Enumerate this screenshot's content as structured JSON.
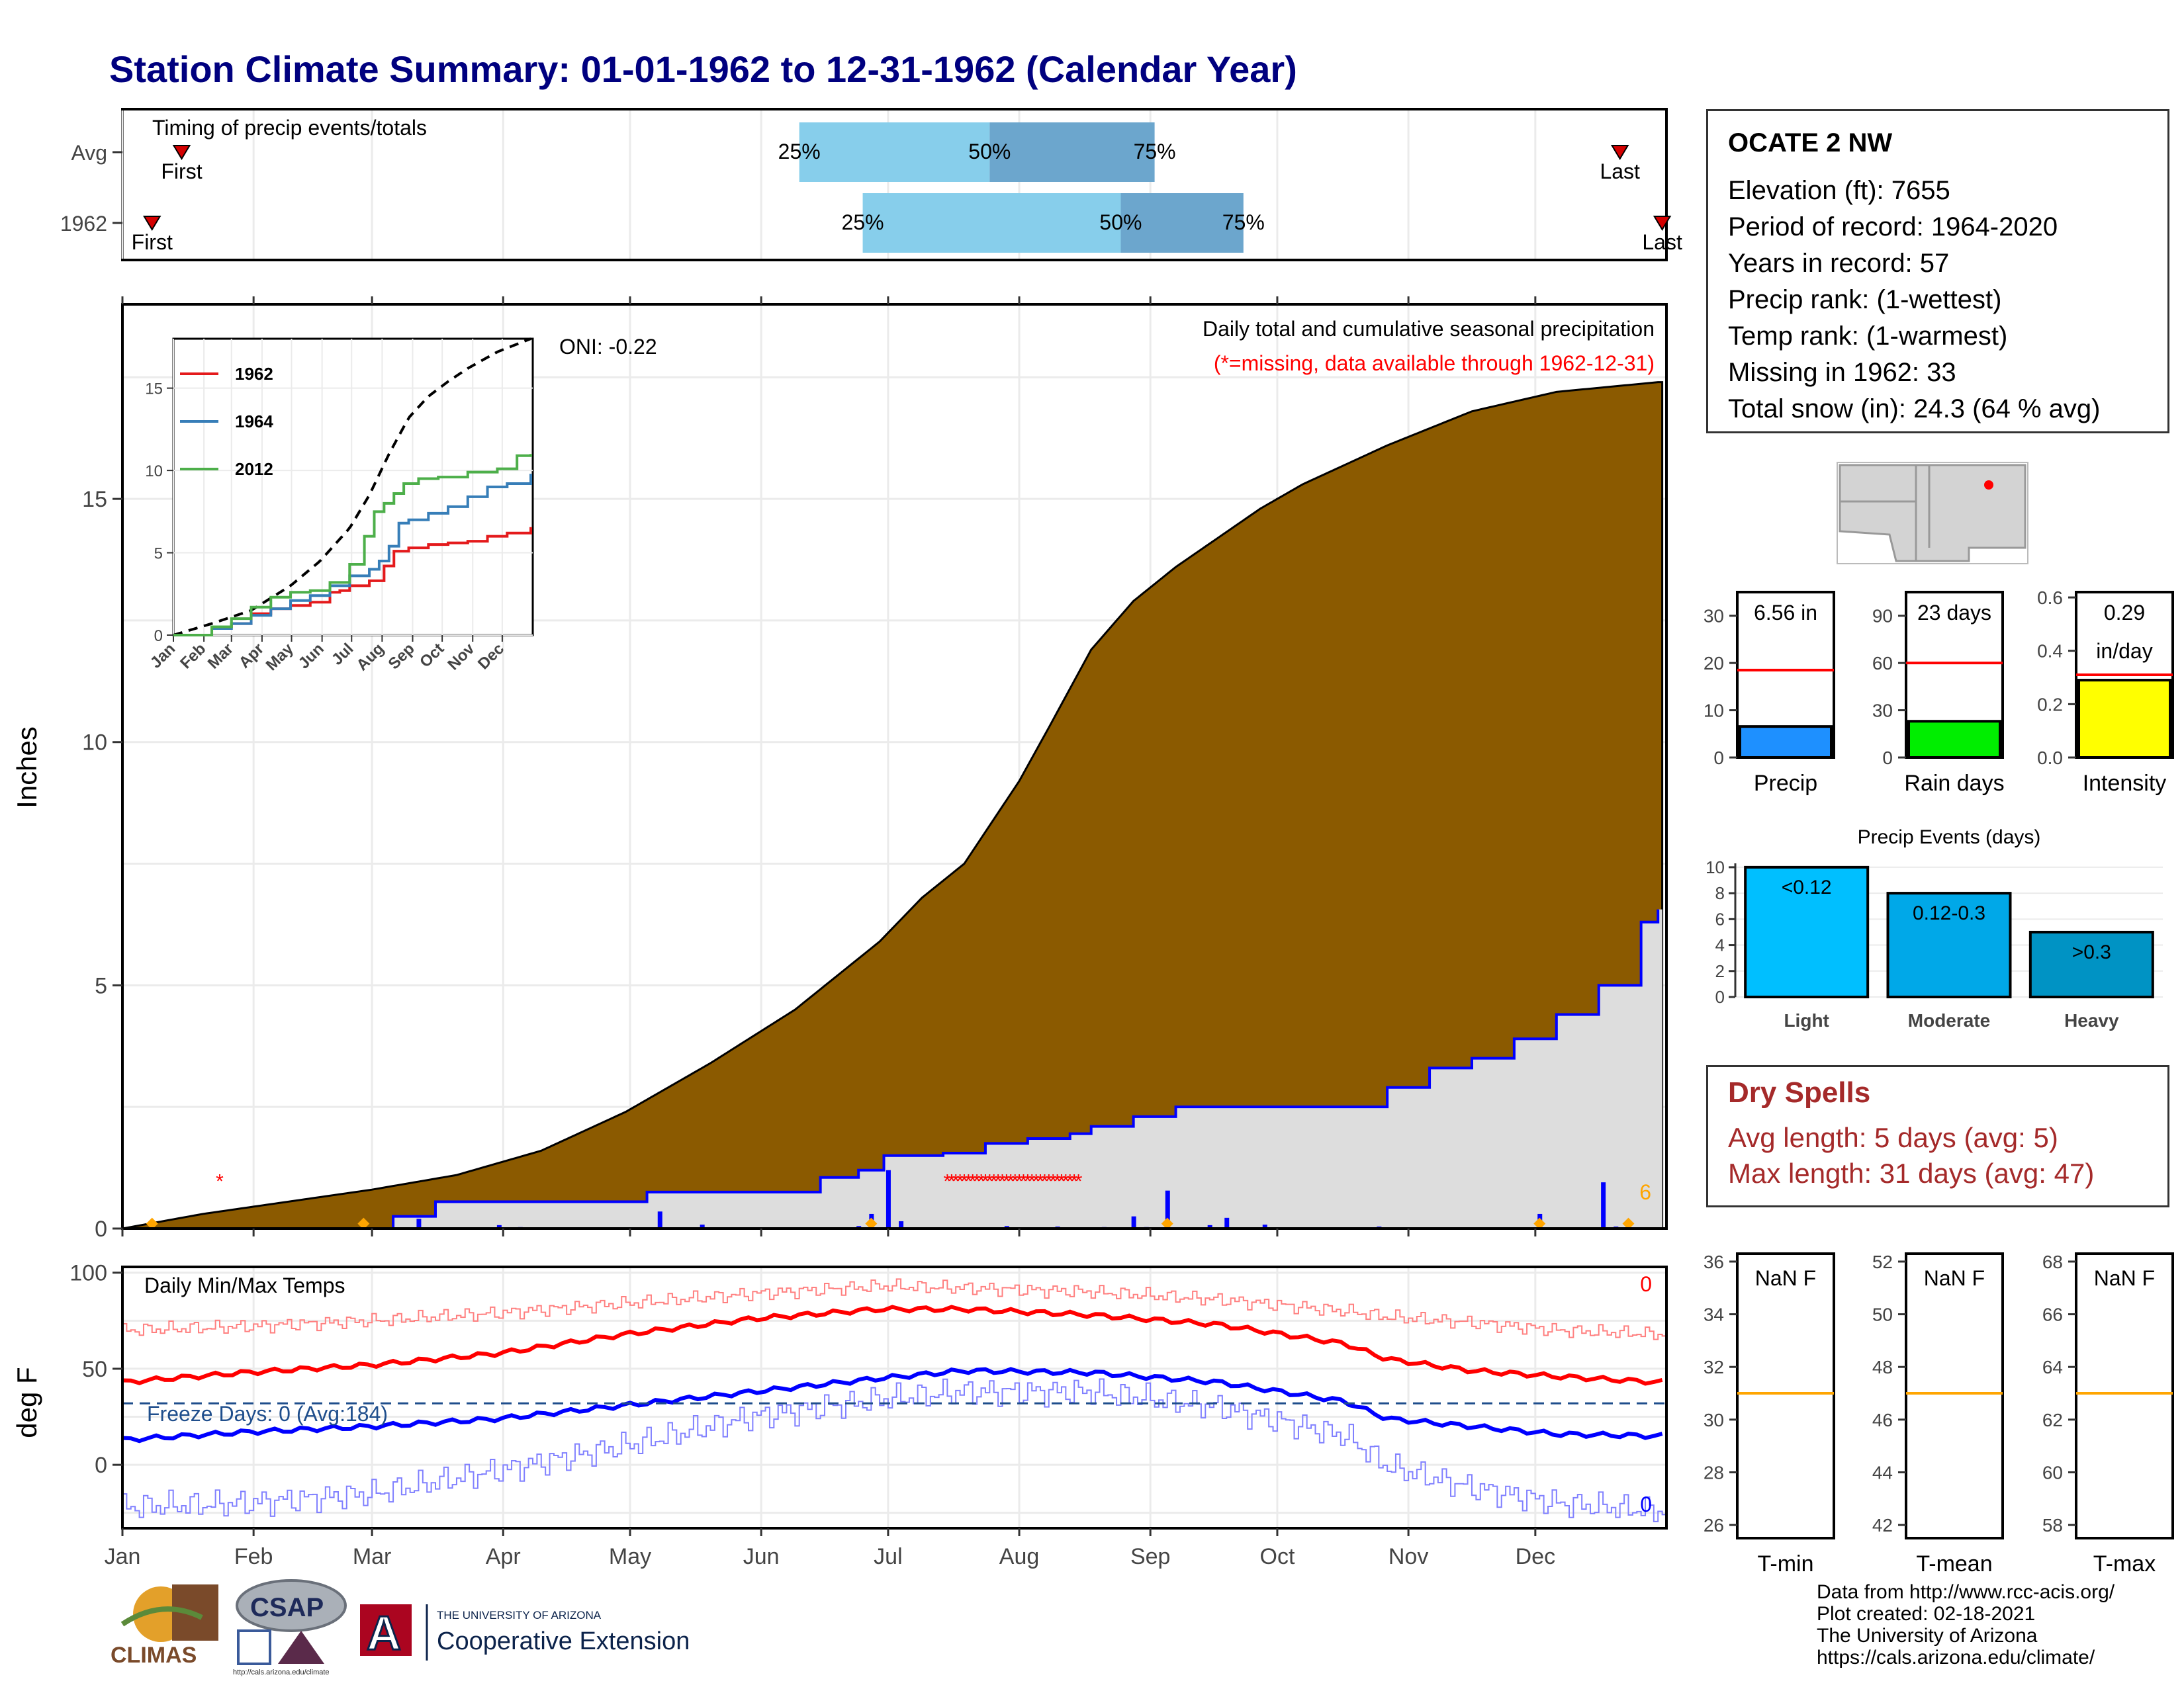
{
  "title": "Station Climate Summary: 01-01-1962 to 12-31-1962 (Calendar Year)",
  "station": {
    "name": "OCATE 2 NW",
    "rows": [
      "Elevation (ft): 7655",
      "Period of record: 1964-2020",
      "Years in record: 57",
      "Precip rank:  (1-wettest)",
      "Temp rank:  (1-warmest)",
      "Missing in 1962: 33",
      "Total snow (in): 24.3 (64 % avg)"
    ]
  },
  "dry_spells": {
    "title": "Dry Spells",
    "avg": "Avg length: 5 days (avg: 5)",
    "max": "Max length: 31 days (avg: 47)"
  },
  "footer": [
    "Data from http://www.rcc-acis.org/",
    "Plot created: 02-18-2021",
    "The University of Arizona",
    "https://cals.arizona.edu/climate/"
  ],
  "logos": {
    "climas": "CLIMAS",
    "csap": "CSAP",
    "csap_url": "http://cals.arizona.edu/climate",
    "ua_small": "THE UNIVERSITY OF ARIZONA",
    "ua_big": "Cooperative Extension",
    "ua_letter": "A"
  },
  "colors": {
    "title": "#00007f",
    "cum_fill": "#8B5A00",
    "season_fill": "#dddddd",
    "precip_bar": "#0000ff",
    "avg_max": "#ff0000",
    "avg_min": "#0000ff",
    "q_light": "#87ceeb",
    "q_dark": "#6ca6cd",
    "dry": "#a52a2a"
  },
  "chart_data": [
    {
      "id": "timing",
      "type": "bar",
      "title": "Timing of precip events/totals",
      "rows": [
        {
          "label": "Avg",
          "first": "01-15",
          "q25": "06-10",
          "q50": "07-25",
          "q75": "09-02",
          "last": "12-21"
        },
        {
          "label": "1962",
          "first": "01-08",
          "q25": "06-25",
          "q50": "08-25",
          "q75": "09-23",
          "last": "12-31"
        }
      ],
      "marker_labels": {
        "first": "First",
        "last": "Last",
        "q25": "25%",
        "q50": "50%",
        "q75": "75%"
      }
    },
    {
      "id": "precip",
      "type": "area",
      "title": "Daily total and cumulative seasonal precipitation",
      "subtitle": "(*=missing, data available through 1962-12-31)",
      "ylabel": "Inches",
      "ylim": [
        0,
        19
      ],
      "yticks": [
        0,
        5,
        10,
        15
      ],
      "oni": "ONI: -0.22",
      "months": [
        "Jan",
        "Feb",
        "Mar",
        "Apr",
        "May",
        "Jun",
        "Jul",
        "Aug",
        "Sep",
        "Oct",
        "Nov",
        "Dec"
      ],
      "avg_cumulative": {
        "day": [
          1,
          20,
          40,
          60,
          80,
          100,
          120,
          140,
          160,
          180,
          190,
          200,
          213,
          220,
          230,
          240,
          250,
          260,
          270,
          280,
          290,
          300,
          320,
          340,
          364
        ],
        "in": [
          0,
          0.3,
          0.55,
          0.8,
          1.1,
          1.6,
          2.4,
          3.4,
          4.5,
          5.9,
          6.8,
          7.5,
          9.2,
          10.3,
          11.9,
          12.9,
          13.6,
          14.2,
          14.8,
          15.3,
          15.7,
          16.1,
          16.8,
          17.2,
          17.4
        ]
      },
      "season_total": {
        "day": [
          1,
          60,
          65,
          70,
          75,
          120,
          125,
          165,
          166,
          170,
          175,
          180,
          181,
          190,
          195,
          200,
          205,
          210,
          215,
          220,
          225,
          230,
          240,
          250,
          300,
          310,
          320,
          330,
          340,
          350,
          360,
          364
        ],
        "in": [
          0,
          0,
          0.25,
          0.25,
          0.55,
          0.55,
          0.75,
          0.75,
          1.05,
          1.05,
          1.2,
          1.2,
          1.5,
          1.5,
          1.55,
          1.55,
          1.75,
          1.75,
          1.85,
          1.85,
          1.95,
          2.1,
          2.3,
          2.5,
          2.9,
          3.3,
          3.5,
          3.9,
          4.4,
          5.0,
          6.3,
          6.56
        ]
      },
      "daily": {
        "day": [
          8,
          22,
          58,
          71,
          90,
          95,
          128,
          138,
          172,
          175,
          178,
          182,
          185,
          210,
          222,
          233,
          240,
          243,
          248,
          258,
          262,
          271,
          298,
          328,
          336,
          351,
          354
        ],
        "in": [
          0.03,
          0.02,
          0.05,
          0.2,
          0.07,
          0.03,
          0.35,
          0.08,
          0.02,
          0.05,
          0.3,
          1.2,
          0.15,
          0.05,
          0.04,
          0.03,
          0.25,
          0.03,
          0.78,
          0.07,
          0.22,
          0.08,
          0.04,
          0.02,
          0.3,
          0.95,
          0.04
        ]
      },
      "missing_days": [
        24,
        196,
        197,
        198,
        199,
        200,
        201,
        202,
        203,
        204,
        205,
        206,
        207,
        208,
        209,
        210,
        211,
        212,
        213,
        214,
        215,
        216,
        217,
        218,
        219,
        220,
        221,
        222,
        223,
        224,
        225,
        226,
        227
      ],
      "flag_days": [
        8,
        58,
        178,
        248,
        336,
        357
      ],
      "flag_label": "6"
    },
    {
      "id": "inset",
      "type": "line",
      "months": [
        "Jan",
        "Feb",
        "Mar",
        "Apr",
        "May",
        "Jun",
        "Jul",
        "Aug",
        "Sep",
        "Oct",
        "Nov",
        "Dec"
      ],
      "yticks": [
        0,
        5,
        10,
        15
      ],
      "ylim": [
        0,
        18
      ],
      "series": [
        {
          "name": "1962",
          "color": "#e41a1c",
          "day": [
            1,
            40,
            60,
            80,
            100,
            120,
            140,
            160,
            170,
            180,
            190,
            200,
            215,
            225,
            240,
            260,
            280,
            300,
            320,
            340,
            364
          ],
          "in": [
            0,
            0.5,
            0.7,
            1.3,
            1.6,
            1.8,
            2.0,
            2.6,
            2.7,
            3.0,
            3.0,
            3.3,
            4.2,
            5.1,
            5.3,
            5.5,
            5.6,
            5.7,
            6.0,
            6.2,
            6.56
          ]
        },
        {
          "name": "1964",
          "color": "#377eb8",
          "day": [
            1,
            40,
            60,
            80,
            100,
            120,
            140,
            160,
            180,
            200,
            210,
            220,
            230,
            240,
            260,
            280,
            300,
            320,
            340,
            364
          ],
          "in": [
            0,
            0.4,
            0.7,
            1.2,
            1.6,
            2.1,
            2.4,
            3.0,
            3.6,
            4.0,
            4.5,
            5.4,
            6.8,
            7.0,
            7.4,
            7.8,
            8.4,
            9.0,
            9.2,
            9.8
          ]
        },
        {
          "name": "2012",
          "color": "#4daf4a",
          "day": [
            1,
            40,
            60,
            80,
            100,
            120,
            140,
            160,
            180,
            195,
            205,
            215,
            225,
            235,
            250,
            270,
            300,
            330,
            350,
            364
          ],
          "in": [
            0,
            0.5,
            1.0,
            1.7,
            2.3,
            2.6,
            2.7,
            3.2,
            4.3,
            6.0,
            7.5,
            8.0,
            8.6,
            9.2,
            9.5,
            9.6,
            9.9,
            10.1,
            10.9,
            11.0
          ]
        }
      ],
      "avg_line": {
        "day": [
          1,
          40,
          80,
          120,
          150,
          180,
          200,
          220,
          240,
          260,
          280,
          300,
          330,
          364
        ],
        "in": [
          0,
          0.7,
          1.5,
          3.0,
          4.5,
          6.5,
          8.5,
          11.0,
          13.2,
          14.5,
          15.4,
          16.2,
          17.2,
          18.0
        ]
      }
    },
    {
      "id": "temps",
      "type": "line",
      "title": "Daily Min/Max Temps",
      "ylabel": "deg F",
      "ylim": [
        -33,
        103
      ],
      "yticks": [
        0,
        50,
        100
      ],
      "freeze_line": 32,
      "freeze_label": "Freeze Days: 0 (Avg:184)",
      "count_max": "0",
      "count_min": "0",
      "months": [
        "Jan",
        "Feb",
        "Mar",
        "Apr",
        "May",
        "Jun",
        "Jul",
        "Aug",
        "Sep",
        "Oct",
        "Nov",
        "Dec"
      ],
      "avg_max": {
        "day": [
          1,
          30,
          60,
          90,
          120,
          150,
          180,
          200,
          230,
          260,
          290,
          300,
          320,
          340,
          364
        ],
        "f": [
          43,
          48,
          52,
          58,
          68,
          76,
          81,
          81,
          78,
          73,
          63,
          55,
          49,
          46,
          43
        ]
      },
      "avg_min": {
        "day": [
          1,
          30,
          60,
          90,
          120,
          150,
          180,
          200,
          230,
          260,
          290,
          300,
          320,
          340,
          364
        ],
        "f": [
          13,
          17,
          20,
          24,
          31,
          38,
          45,
          49,
          48,
          43,
          33,
          24,
          20,
          16,
          15
        ]
      },
      "rec_max": {
        "day": [
          1,
          30,
          60,
          90,
          120,
          150,
          180,
          200,
          230,
          260,
          290,
          300,
          320,
          340,
          364
        ],
        "f": [
          70,
          72,
          75,
          79,
          84,
          89,
          93,
          92,
          90,
          86,
          80,
          77,
          74,
          70,
          68
        ]
      },
      "rec_min": {
        "day": [
          1,
          30,
          60,
          90,
          120,
          150,
          180,
          200,
          230,
          260,
          290,
          300,
          320,
          340,
          364
        ],
        "f": [
          -22,
          -20,
          -15,
          -3,
          10,
          25,
          34,
          38,
          38,
          30,
          15,
          -1,
          -12,
          -20,
          -24
        ]
      }
    },
    {
      "id": "precip_total",
      "type": "bar",
      "value": 6.56,
      "avg": 18.5,
      "label": "6.56 in",
      "xlabel": "Precip",
      "yticks": [
        0,
        10,
        20,
        30
      ],
      "ylim": [
        0,
        35
      ],
      "color": "#1e90ff"
    },
    {
      "id": "rain_days",
      "type": "bar",
      "value": 23,
      "avg": 60,
      "label": "23 days",
      "xlabel": "Rain days",
      "yticks": [
        0,
        30,
        60,
        90
      ],
      "ylim": [
        0,
        105
      ],
      "color": "#00ee00"
    },
    {
      "id": "intensity",
      "type": "bar",
      "value": 0.29,
      "avg": 0.31,
      "label": "0.29",
      "label2": "in/day",
      "xlabel": "Intensity",
      "yticks": [
        0.0,
        0.2,
        0.4,
        0.6
      ],
      "ylim": [
        0,
        0.62
      ],
      "color": "#ffff00"
    },
    {
      "id": "events",
      "type": "bar",
      "title": "Precip Events (days)",
      "categories": [
        "Light",
        "Moderate",
        "Heavy"
      ],
      "values": [
        10,
        8,
        5
      ],
      "labels": [
        "<0.12",
        "0.12-0.3",
        ">0.3"
      ],
      "ylim": [
        0,
        10.3
      ],
      "yticks": [
        0,
        2,
        4,
        6,
        8,
        10
      ],
      "colors": [
        "#00bfff",
        "#00a8e8",
        "#0093c4"
      ]
    },
    {
      "id": "tmin",
      "type": "bar",
      "label": "NaN F",
      "xlabel": "T-min",
      "avg": 31,
      "ylim": [
        25.5,
        36.3
      ],
      "yticks": [
        26,
        28,
        30,
        32,
        34,
        36
      ]
    },
    {
      "id": "tmean",
      "type": "bar",
      "label": "NaN F",
      "xlabel": "T-mean",
      "avg": 47,
      "ylim": [
        41.5,
        52.3
      ],
      "yticks": [
        42,
        44,
        46,
        48,
        50,
        52
      ]
    },
    {
      "id": "tmax",
      "type": "bar",
      "label": "NaN F",
      "xlabel": "T-max",
      "avg": 63,
      "ylim": [
        57.5,
        68.3
      ],
      "yticks": [
        58,
        60,
        62,
        64,
        66,
        68
      ]
    }
  ]
}
